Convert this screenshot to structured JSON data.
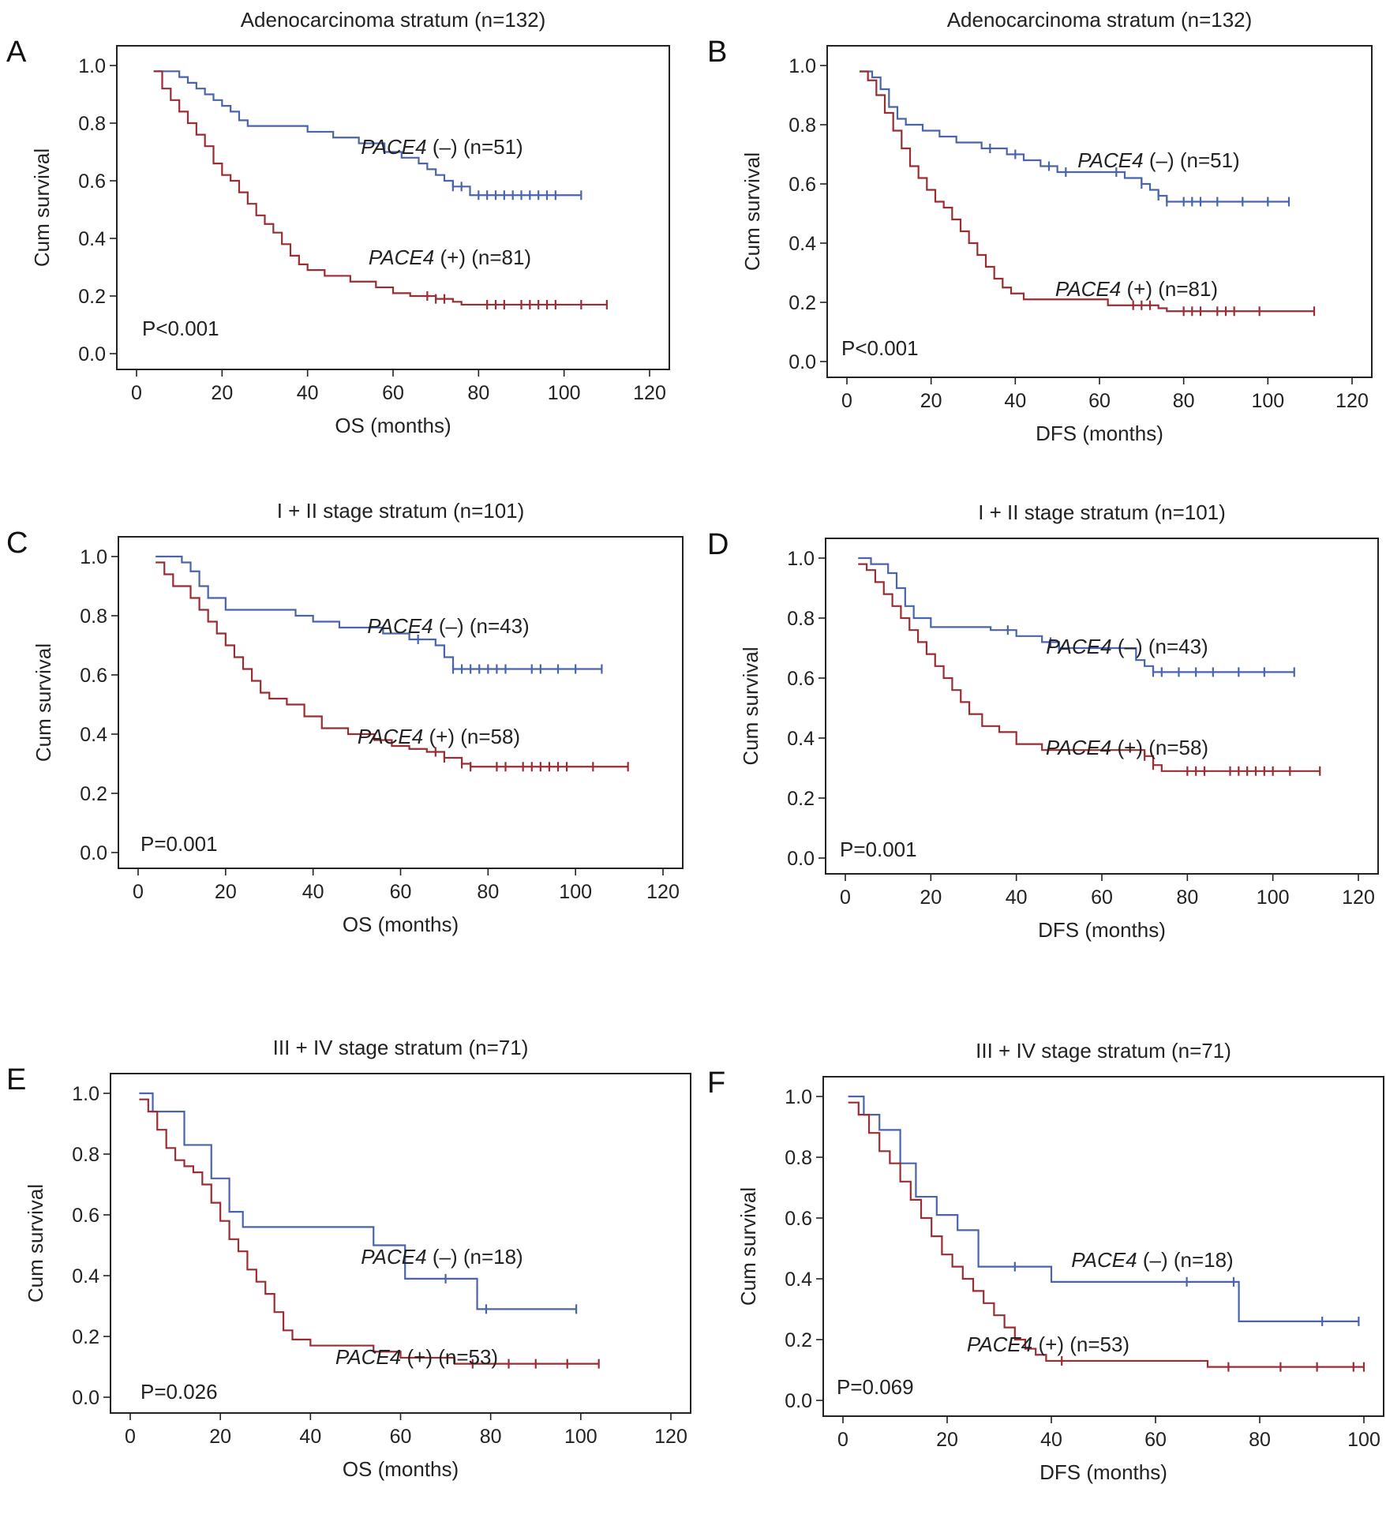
{
  "figure": {
    "panels": [
      {
        "letter": "A",
        "title": "Adenocarcinoma stratum (n=132)",
        "xlabel": "OS (months)",
        "ylabel": "Cum survival",
        "pvalue": "P<0.001",
        "labels": [
          {
            "gene": "PACE4",
            "rest": " (–) (n=51)"
          },
          {
            "gene": "PACE4",
            "rest": " (+) (n=81)"
          }
        ]
      },
      {
        "letter": "B",
        "title": "Adenocarcinoma stratum (n=132)",
        "xlabel": "DFS (months)",
        "ylabel": "Cum survival",
        "pvalue": "P<0.001",
        "labels": [
          {
            "gene": "PACE4",
            "rest": " (–) (n=51)"
          },
          {
            "gene": "PACE4",
            "rest": " (+) (n=81)"
          }
        ]
      },
      {
        "letter": "C",
        "title": "I + II stage stratum (n=101)",
        "xlabel": "OS (months)",
        "ylabel": "Cum survival",
        "pvalue": "P=0.001",
        "labels": [
          {
            "gene": "PACE4",
            "rest": " (–) (n=43)"
          },
          {
            "gene": "PACE4",
            "rest": " (+) (n=58)"
          }
        ]
      },
      {
        "letter": "D",
        "title": "I + II stage stratum (n=101)",
        "xlabel": "DFS (months)",
        "ylabel": "Cum survival",
        "pvalue": "P=0.001",
        "labels": [
          {
            "gene": "PACE4",
            "rest": " (–) (n=43)"
          },
          {
            "gene": "PACE4",
            "rest": " (+) (n=58)"
          }
        ]
      },
      {
        "letter": "E",
        "title": "III + IV stage stratum (n=71)",
        "xlabel": "OS (months)",
        "ylabel": "Cum survival",
        "pvalue": "P=0.026",
        "labels": [
          {
            "gene": "PACE4",
            "rest": " (–) (n=18)"
          },
          {
            "gene": "PACE4",
            "rest": " (+) (n=53)"
          }
        ]
      },
      {
        "letter": "F",
        "title": "III + IV stage stratum (n=71)",
        "xlabel": "DFS (months)",
        "ylabel": "Cum survival",
        "pvalue": "P=0.069",
        "labels": [
          {
            "gene": "PACE4",
            "rest": " (–) (n=18)"
          },
          {
            "gene": "PACE4",
            "rest": " (+) (n=53)"
          }
        ]
      }
    ],
    "colors": {
      "negative": "#4a63ad",
      "positive": "#9b2c33"
    }
  },
  "chart_data": [
    {
      "type": "line",
      "title": "Adenocarcinoma stratum (n=132)",
      "xlabel": "OS (months)",
      "ylabel": "Cum survival",
      "xlim": [
        0,
        120
      ],
      "ylim": [
        0,
        1.0
      ],
      "xticks": [
        0,
        20,
        40,
        60,
        80,
        100,
        120
      ],
      "yticks": [
        0.0,
        0.2,
        0.4,
        0.6,
        0.8,
        1.0
      ],
      "annotation": "P<0.001",
      "series": [
        {
          "name": "PACE4 (–) (n=51)",
          "color": "#4a63ad",
          "x": [
            4,
            8,
            10,
            12,
            14,
            16,
            18,
            20,
            22,
            24,
            26,
            30,
            36,
            40,
            46,
            52,
            58,
            62,
            66,
            68,
            70,
            72,
            74,
            76,
            78,
            82,
            104
          ],
          "y": [
            0.98,
            0.98,
            0.96,
            0.94,
            0.92,
            0.9,
            0.88,
            0.86,
            0.84,
            0.81,
            0.79,
            0.79,
            0.79,
            0.77,
            0.75,
            0.73,
            0.7,
            0.68,
            0.66,
            0.64,
            0.62,
            0.6,
            0.58,
            0.58,
            0.55,
            0.55,
            0.55
          ],
          "censored": [
            74,
            76,
            80,
            82,
            84,
            86,
            88,
            90,
            92,
            94,
            96,
            98,
            104
          ]
        },
        {
          "name": "PACE4 (+) (n=81)",
          "color": "#9b2c33",
          "x": [
            4,
            6,
            8,
            10,
            12,
            14,
            16,
            18,
            20,
            22,
            24,
            26,
            28,
            30,
            32,
            34,
            36,
            38,
            40,
            44,
            50,
            56,
            60,
            64,
            70,
            74,
            76,
            110
          ],
          "y": [
            0.98,
            0.92,
            0.88,
            0.84,
            0.8,
            0.76,
            0.72,
            0.66,
            0.62,
            0.6,
            0.56,
            0.52,
            0.48,
            0.45,
            0.42,
            0.38,
            0.34,
            0.31,
            0.29,
            0.27,
            0.25,
            0.23,
            0.21,
            0.2,
            0.19,
            0.18,
            0.17,
            0.17
          ],
          "censored": [
            68,
            70,
            72,
            82,
            84,
            86,
            90,
            92,
            94,
            96,
            98,
            104,
            110
          ]
        }
      ]
    },
    {
      "type": "line",
      "title": "Adenocarcinoma stratum (n=132)",
      "xlabel": "DFS (months)",
      "ylabel": "Cum survival",
      "xlim": [
        0,
        120
      ],
      "ylim": [
        0,
        1.0
      ],
      "xticks": [
        0,
        20,
        40,
        60,
        80,
        100,
        120
      ],
      "yticks": [
        0.0,
        0.2,
        0.4,
        0.6,
        0.8,
        1.0
      ],
      "annotation": "P<0.001",
      "series": [
        {
          "name": "PACE4 (–) (n=51)",
          "color": "#4a63ad",
          "x": [
            3,
            6,
            8,
            10,
            12,
            14,
            18,
            22,
            26,
            32,
            38,
            42,
            46,
            50,
            58,
            66,
            70,
            72,
            74,
            76,
            105
          ],
          "y": [
            0.98,
            0.96,
            0.92,
            0.86,
            0.82,
            0.8,
            0.78,
            0.76,
            0.74,
            0.72,
            0.7,
            0.68,
            0.66,
            0.64,
            0.64,
            0.62,
            0.6,
            0.58,
            0.56,
            0.54,
            0.54
          ],
          "censored": [
            34,
            40,
            48,
            52,
            64,
            70,
            74,
            76,
            80,
            82,
            84,
            88,
            94,
            100,
            105
          ]
        },
        {
          "name": "PACE4 (+) (n=81)",
          "color": "#9b2c33",
          "x": [
            3,
            5,
            7,
            9,
            11,
            13,
            15,
            17,
            19,
            21,
            23,
            25,
            27,
            29,
            31,
            33,
            35,
            37,
            39,
            42,
            58,
            62,
            68,
            74,
            76,
            111
          ],
          "y": [
            0.98,
            0.95,
            0.9,
            0.84,
            0.78,
            0.72,
            0.66,
            0.62,
            0.58,
            0.54,
            0.52,
            0.48,
            0.44,
            0.4,
            0.36,
            0.32,
            0.28,
            0.25,
            0.23,
            0.21,
            0.21,
            0.19,
            0.19,
            0.18,
            0.17,
            0.17
          ],
          "censored": [
            68,
            70,
            72,
            80,
            82,
            84,
            88,
            90,
            92,
            98,
            111
          ]
        }
      ]
    },
    {
      "type": "line",
      "title": "I + II stage stratum (n=101)",
      "xlabel": "OS (months)",
      "ylabel": "Cum survival",
      "xlim": [
        0,
        120
      ],
      "ylim": [
        0,
        1.0
      ],
      "xticks": [
        0,
        20,
        40,
        60,
        80,
        100,
        120
      ],
      "yticks": [
        0.0,
        0.2,
        0.4,
        0.6,
        0.8,
        1.0
      ],
      "annotation": "P=0.001",
      "series": [
        {
          "name": "PACE4 (–) (n=43)",
          "color": "#4a63ad",
          "x": [
            4,
            8,
            10,
            12,
            14,
            16,
            20,
            28,
            36,
            40,
            46,
            56,
            62,
            68,
            70,
            72,
            106
          ],
          "y": [
            1.0,
            1.0,
            0.98,
            0.95,
            0.9,
            0.86,
            0.82,
            0.82,
            0.8,
            0.78,
            0.76,
            0.74,
            0.72,
            0.7,
            0.66,
            0.62,
            0.62
          ],
          "censored": [
            64,
            72,
            74,
            76,
            78,
            80,
            82,
            84,
            90,
            92,
            96,
            100,
            106
          ]
        },
        {
          "name": "PACE4 (+) (n=58)",
          "color": "#9b2c33",
          "x": [
            4,
            6,
            8,
            12,
            14,
            16,
            18,
            20,
            22,
            24,
            26,
            28,
            30,
            34,
            38,
            42,
            48,
            54,
            58,
            62,
            66,
            70,
            74,
            76,
            112
          ],
          "y": [
            0.98,
            0.94,
            0.9,
            0.86,
            0.82,
            0.78,
            0.74,
            0.7,
            0.66,
            0.62,
            0.58,
            0.54,
            0.52,
            0.5,
            0.46,
            0.42,
            0.4,
            0.38,
            0.36,
            0.35,
            0.34,
            0.32,
            0.3,
            0.29,
            0.29
          ],
          "censored": [
            68,
            70,
            74,
            76,
            82,
            84,
            88,
            90,
            92,
            94,
            96,
            98,
            104,
            112
          ]
        }
      ]
    },
    {
      "type": "line",
      "title": "I + II stage stratum (n=101)",
      "xlabel": "DFS (months)",
      "ylabel": "Cum survival",
      "xlim": [
        0,
        120
      ],
      "ylim": [
        0,
        1.0
      ],
      "xticks": [
        0,
        20,
        40,
        60,
        80,
        100,
        120
      ],
      "yticks": [
        0.0,
        0.2,
        0.4,
        0.6,
        0.8,
        1.0
      ],
      "annotation": "P=0.001",
      "series": [
        {
          "name": "PACE4 (–) (n=43)",
          "color": "#4a63ad",
          "x": [
            3,
            6,
            10,
            12,
            14,
            16,
            20,
            26,
            34,
            40,
            46,
            50,
            66,
            68,
            70,
            72,
            105
          ],
          "y": [
            1.0,
            0.98,
            0.95,
            0.9,
            0.84,
            0.8,
            0.77,
            0.77,
            0.76,
            0.74,
            0.72,
            0.7,
            0.7,
            0.66,
            0.64,
            0.62,
            0.62
          ],
          "censored": [
            38,
            48,
            50,
            72,
            74,
            78,
            82,
            86,
            92,
            98,
            105
          ]
        },
        {
          "name": "PACE4 (+) (n=58)",
          "color": "#9b2c33",
          "x": [
            3,
            5,
            7,
            9,
            11,
            13,
            15,
            17,
            19,
            21,
            23,
            25,
            27,
            29,
            32,
            36,
            40,
            46,
            60,
            70,
            72,
            74,
            111
          ],
          "y": [
            0.98,
            0.96,
            0.92,
            0.88,
            0.84,
            0.8,
            0.76,
            0.72,
            0.68,
            0.64,
            0.6,
            0.56,
            0.52,
            0.48,
            0.44,
            0.42,
            0.38,
            0.36,
            0.36,
            0.34,
            0.31,
            0.29,
            0.29
          ],
          "censored": [
            70,
            72,
            80,
            82,
            84,
            90,
            92,
            94,
            96,
            98,
            100,
            104,
            111
          ]
        }
      ]
    },
    {
      "type": "line",
      "title": "III + IV stage stratum (n=71)",
      "xlabel": "OS (months)",
      "ylabel": "Cum survival",
      "xlim": [
        0,
        120
      ],
      "ylim": [
        0,
        1.0
      ],
      "xticks": [
        0,
        20,
        40,
        60,
        80,
        100,
        120
      ],
      "yticks": [
        0.0,
        0.2,
        0.4,
        0.6,
        0.8,
        1.0
      ],
      "annotation": "P=0.026",
      "series": [
        {
          "name": "PACE4 (–) (n=18)",
          "color": "#4a63ad",
          "x": [
            2,
            5,
            12,
            18,
            22,
            25,
            54,
            61,
            77,
            99
          ],
          "y": [
            1.0,
            0.94,
            0.83,
            0.72,
            0.61,
            0.56,
            0.5,
            0.39,
            0.29,
            0.29
          ],
          "censored": [
            70,
            79,
            99
          ]
        },
        {
          "name": "PACE4 (+) (n=53)",
          "color": "#9b2c33",
          "x": [
            2,
            4,
            6,
            8,
            10,
            12,
            14,
            16,
            18,
            20,
            22,
            24,
            26,
            28,
            30,
            32,
            34,
            36,
            40,
            46,
            54,
            60,
            72,
            104
          ],
          "y": [
            0.98,
            0.94,
            0.88,
            0.82,
            0.78,
            0.76,
            0.74,
            0.7,
            0.64,
            0.58,
            0.52,
            0.48,
            0.42,
            0.38,
            0.34,
            0.28,
            0.22,
            0.19,
            0.17,
            0.17,
            0.15,
            0.13,
            0.11,
            0.11
          ],
          "censored": [
            76,
            84,
            90,
            97,
            104
          ]
        }
      ]
    },
    {
      "type": "line",
      "title": "III + IV stage stratum (n=71)",
      "xlabel": "DFS (months)",
      "ylabel": "Cum survival",
      "xlim": [
        0,
        100
      ],
      "ylim": [
        0,
        1.0
      ],
      "xticks": [
        0,
        20,
        40,
        60,
        80,
        100
      ],
      "yticks": [
        0.0,
        0.2,
        0.4,
        0.6,
        0.8,
        1.0
      ],
      "annotation": "P=0.069",
      "series": [
        {
          "name": "PACE4 (–) (n=18)",
          "color": "#4a63ad",
          "x": [
            1,
            4,
            7,
            11,
            14,
            18,
            22,
            26,
            40,
            76,
            99
          ],
          "y": [
            1.0,
            0.94,
            0.89,
            0.78,
            0.67,
            0.61,
            0.56,
            0.44,
            0.39,
            0.26,
            0.26
          ],
          "censored": [
            33,
            66,
            75,
            92,
            99
          ]
        },
        {
          "name": "PACE4 (+) (n=53)",
          "color": "#9b2c33",
          "x": [
            1,
            3,
            5,
            7,
            9,
            11,
            13,
            15,
            17,
            19,
            21,
            23,
            25,
            27,
            29,
            31,
            33,
            35,
            37,
            39,
            41,
            70,
            100
          ],
          "y": [
            0.98,
            0.94,
            0.88,
            0.82,
            0.78,
            0.72,
            0.66,
            0.6,
            0.54,
            0.48,
            0.44,
            0.4,
            0.36,
            0.32,
            0.28,
            0.24,
            0.2,
            0.17,
            0.15,
            0.13,
            0.13,
            0.11,
            0.11
          ],
          "censored": [
            42,
            74,
            84,
            91,
            98,
            100
          ]
        }
      ]
    }
  ]
}
